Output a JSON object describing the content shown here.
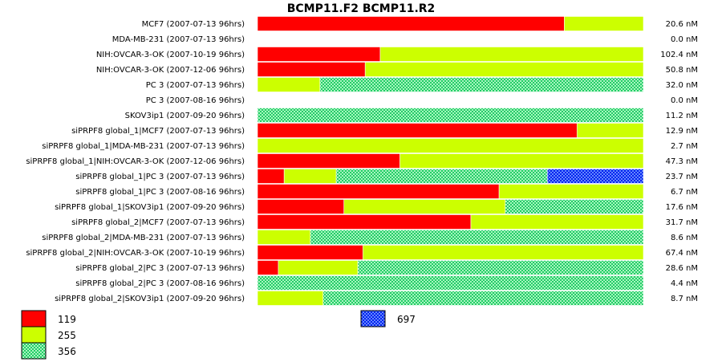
{
  "chart_data": {
    "type": "bar",
    "stacked": "percent",
    "orientation": "horizontal",
    "title": "BCMP11.F2  BCMP11.R2",
    "categories": [
      "MCF7 (2007-07-13 96hrs)",
      "MDA-MB-231 (2007-07-13 96hrs)",
      "NIH:OVCAR-3-OK (2007-10-19 96hrs)",
      "NIH:OVCAR-3-OK (2007-12-06 96hrs)",
      "PC 3 (2007-07-13 96hrs)",
      "PC 3 (2007-08-16 96hrs)",
      "SKOV3ip1 (2007-09-20 96hrs)",
      "siPRPF8 global_1|MCF7 (2007-07-13 96hrs)",
      "siPRPF8 global_1|MDA-MB-231 (2007-07-13 96hrs)",
      "siPRPF8 global_1|NIH:OVCAR-3-OK (2007-12-06 96hrs)",
      "siPRPF8 global_1|PC 3 (2007-07-13 96hrs)",
      "siPRPF8 global_1|PC 3 (2007-08-16 96hrs)",
      "siPRPF8 global_1|SKOV3ip1 (2007-09-20 96hrs)",
      "siPRPF8 global_2|MCF7 (2007-07-13 96hrs)",
      "siPRPF8 global_2|MDA-MB-231 (2007-07-13 96hrs)",
      "siPRPF8 global_2|NIH:OVCAR-3-OK (2007-10-19 96hrs)",
      "siPRPF8 global_2|PC 3 (2007-07-13 96hrs)",
      "siPRPF8 global_2|PC 3 (2007-08-16 96hrs)",
      "siPRPF8 global_2|SKOV3ip1 (2007-09-20 96hrs)"
    ],
    "totals": [
      "20.6 nM",
      "0.0 nM",
      "102.4 nM",
      "50.8 nM",
      "32.0 nM",
      "0.0 nM",
      "11.2 nM",
      "12.9 nM",
      "2.7 nM",
      "47.3 nM",
      "23.7 nM",
      "6.7 nM",
      "17.6 nM",
      "31.7 nM",
      "8.6 nM",
      "67.4 nM",
      "28.6 nM",
      "4.4 nM",
      "8.7 nM"
    ],
    "series": [
      {
        "name": "119",
        "color": "#ff0000",
        "pattern": "solid",
        "values": [
          79.5,
          0,
          31.8,
          27.9,
          0,
          0,
          0,
          82.8,
          0,
          36.9,
          6.9,
          62.6,
          22.4,
          55.3,
          0,
          27.3,
          5.4,
          0,
          0
        ]
      },
      {
        "name": "255",
        "color": "#ccff00",
        "pattern": "solid",
        "values": [
          20.5,
          0,
          68.2,
          72.1,
          16.2,
          0,
          0,
          17.2,
          100,
          63.1,
          13.5,
          37.4,
          41.8,
          44.7,
          13.7,
          72.7,
          20.6,
          0,
          17.0
        ]
      },
      {
        "name": "356",
        "color": "#33dd66",
        "pattern": "check",
        "values": [
          0,
          0,
          0,
          0,
          83.8,
          0,
          100,
          0,
          0,
          0,
          54.7,
          0,
          35.8,
          0,
          86.3,
          0,
          74.0,
          100,
          83.0
        ]
      },
      {
        "name": "697",
        "color": "#1133ff",
        "pattern": "check",
        "values": [
          0,
          0,
          0,
          0,
          0,
          0,
          0,
          0,
          0,
          0,
          24.9,
          0,
          0,
          0,
          0,
          0,
          0,
          0,
          0
        ]
      }
    ],
    "xlim": [
      0,
      100
    ],
    "grid": false,
    "legend": "bottom"
  }
}
